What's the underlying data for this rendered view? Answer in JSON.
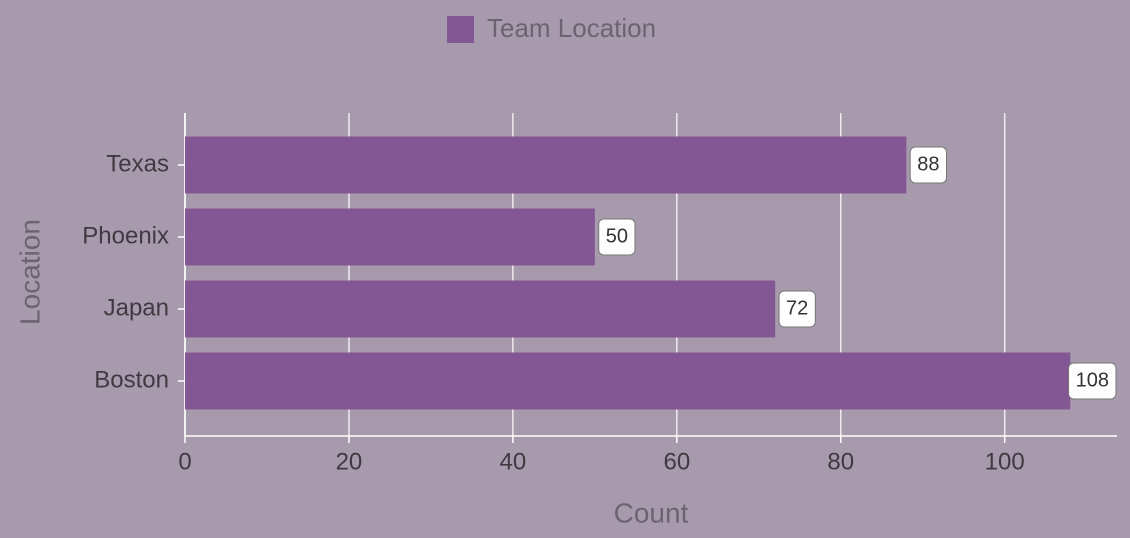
{
  "chart_data": {
    "type": "bar",
    "orientation": "horizontal",
    "legend": "top",
    "x_label": "Count",
    "y_label": "Location",
    "categories": [
      "Texas",
      "Phoenix",
      "Japan",
      "Boston"
    ],
    "series": [
      {
        "name": "Team Location",
        "color": "#835794",
        "values": [
          88,
          50,
          72,
          108
        ]
      }
    ],
    "xlim": [
      0,
      113.7
    ],
    "xticks": [
      0,
      20,
      40,
      60,
      80,
      100
    ],
    "grid": true
  }
}
